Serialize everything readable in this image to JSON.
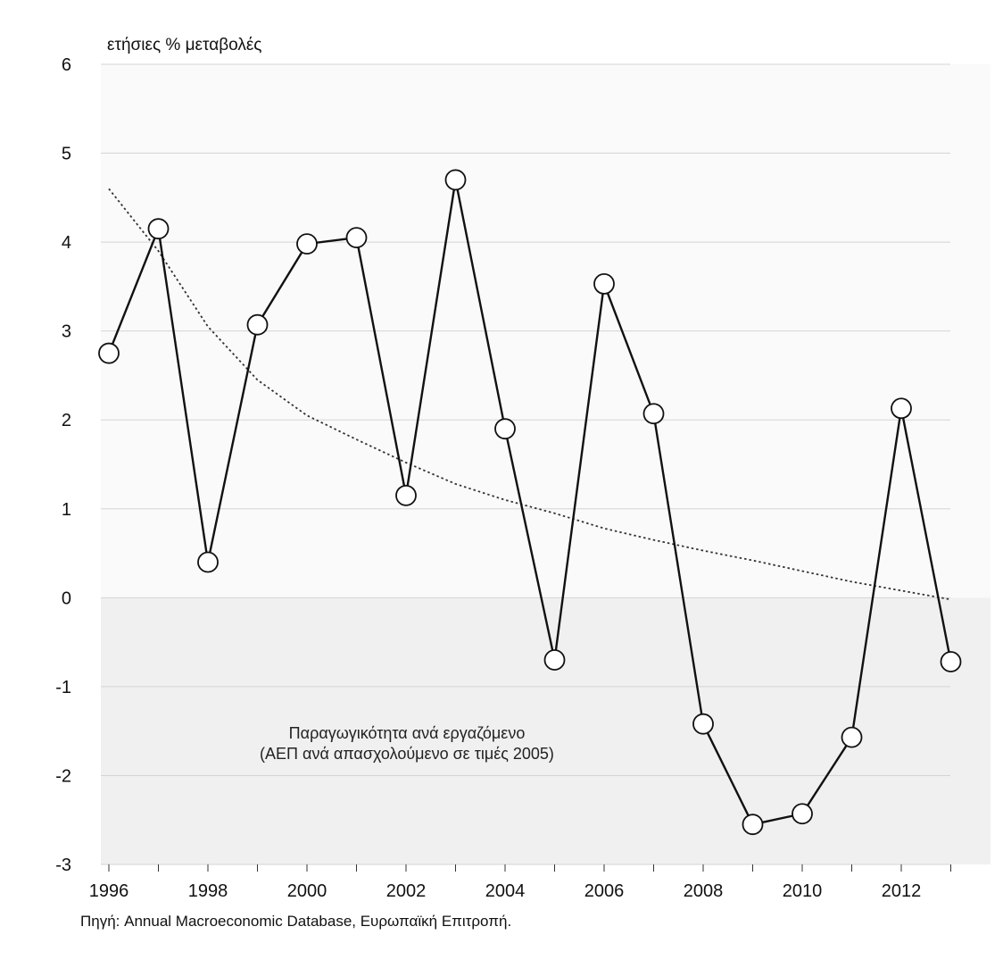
{
  "chart_data": {
    "type": "line",
    "y_unit_label": "ετήσιες % μεταβολές",
    "annotation_lines": [
      "Παραγωγικότητα ανά εργαζόμενο",
      "(ΑΕΠ ανά απασχολούμενο σε τιμές 2005)"
    ],
    "source": "Πηγή: Annual Macroeconomic Database, Ευρωπαϊκή Επιτροπή.",
    "xlim": [
      1996,
      2013
    ],
    "ylim": [
      -3,
      6
    ],
    "x_ticks": [
      1996,
      1998,
      2000,
      2002,
      2004,
      2006,
      2008,
      2010,
      2012
    ],
    "y_ticks": [
      6,
      5,
      4,
      3,
      2,
      1,
      0,
      -1,
      -2,
      -3
    ],
    "grid": true,
    "series": [
      {
        "style": "solid line with open circle markers",
        "color": "#111111",
        "x": [
          1996,
          1997,
          1998,
          1999,
          2000,
          2001,
          2002,
          2003,
          2004,
          2005,
          2006,
          2007,
          2008,
          2009,
          2010,
          2011,
          2012,
          2013
        ],
        "values": [
          2.75,
          4.15,
          0.4,
          3.07,
          3.98,
          4.05,
          1.15,
          4.7,
          1.9,
          -0.7,
          3.53,
          2.07,
          -1.42,
          -2.55,
          -2.43,
          -1.57,
          2.13,
          -0.72
        ]
      },
      {
        "style": "dotted trend curve",
        "color": "#333333",
        "x": [
          1996,
          1997,
          1998,
          1999,
          2000,
          2001,
          2002,
          2003,
          2004,
          2005,
          2006,
          2007,
          2008,
          2009,
          2010,
          2011,
          2012,
          2013
        ],
        "values": [
          4.6,
          3.9,
          3.05,
          2.45,
          2.05,
          1.78,
          1.52,
          1.28,
          1.1,
          0.95,
          0.78,
          0.65,
          0.53,
          0.42,
          0.3,
          0.18,
          0.08,
          -0.02
        ]
      }
    ],
    "colors": {
      "plot_background": "#fafafa",
      "negative_band": "#f0f0f0",
      "gridline": "#d4d4d4",
      "marker_fill": "#ffffff"
    }
  }
}
